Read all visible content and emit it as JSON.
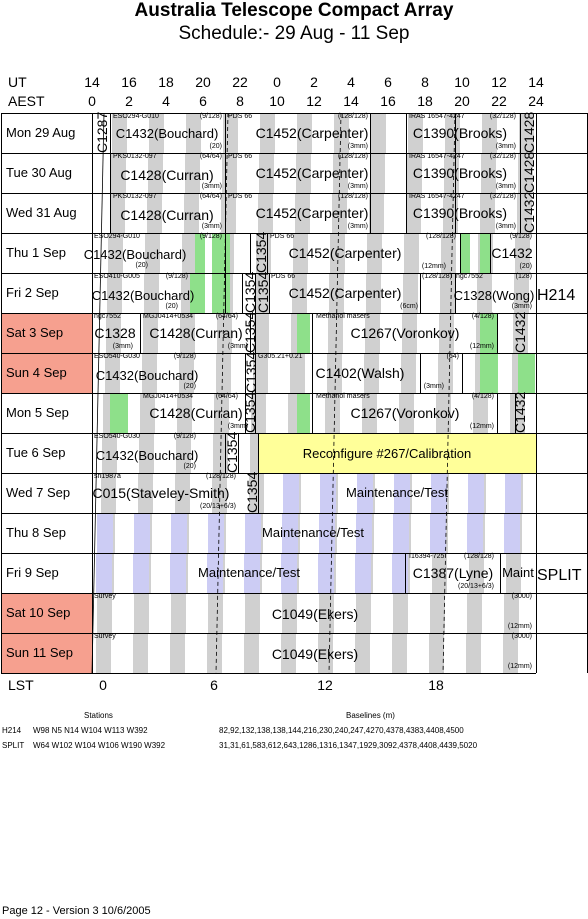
{
  "header": {
    "title": "Australia Telescope Compact Array",
    "subtitle": "Schedule:- 29 Aug - 11 Sep",
    "ut_label": "UT",
    "aest_label": "AEST",
    "ut_ticks": [
      "14",
      "16",
      "18",
      "20",
      "22",
      "0",
      "2",
      "4",
      "6",
      "8",
      "10",
      "12",
      "14"
    ],
    "aest_ticks": [
      "0",
      "2",
      "4",
      "6",
      "8",
      "10",
      "12",
      "14",
      "16",
      "18",
      "20",
      "22",
      "24"
    ]
  },
  "days": [
    {
      "label": "Mon  29 Aug",
      "highlight": false
    },
    {
      "label": "Tue   30 Aug",
      "highlight": false
    },
    {
      "label": "Wed  31 Aug",
      "highlight": false
    },
    {
      "label": "Thu    1  Sep",
      "highlight": false
    },
    {
      "label": "Fri    2  Sep",
      "highlight": false
    },
    {
      "label": "Sat    3  Sep",
      "highlight": true
    },
    {
      "label": "Sun   4  Sep",
      "highlight": true
    },
    {
      "label": "Mon   5  Sep",
      "highlight": false
    },
    {
      "label": "Tue    6  Sep",
      "highlight": false
    },
    {
      "label": "Wed   7  Sep",
      "highlight": false
    },
    {
      "label": "Thu    8  Sep",
      "highlight": false
    },
    {
      "label": "Fri    9  Sep",
      "highlight": false
    },
    {
      "label": "Sat   10 Sep",
      "highlight": true
    },
    {
      "label": "Sun   11 Sep",
      "highlight": true
    }
  ],
  "configs": {
    "h214": "H214",
    "split": "SPLIT"
  },
  "blocks": {
    "r0": {
      "v1": "C1287",
      "src1": "ESO294-G010",
      "n1": "(9/128)",
      "p1": "C1432(Bouchard)",
      "w1": "(20)",
      "src2": "PDS 66",
      "p2": "C1452(Carpenter)",
      "n2": "(128/128)",
      "w2": "(3mm)",
      "src3": "IRAS 16547-4247",
      "n3": "(32/128)",
      "p3": "C1390(Brooks)",
      "w3": "(3mm)",
      "v2": "C1428"
    },
    "r1": {
      "src1": "PKS0132-097",
      "n1": "(64/64)",
      "p1": "C1428(Curran)",
      "w1": "(3mm)",
      "src2": "PDS 66",
      "p2": "C1452(Carpenter)",
      "n2": "(128/128)",
      "w2": "(3mm)",
      "src3": "IRAS 16547-4247",
      "n3": "(32/128)",
      "p3": "C1390(Brooks)",
      "w3": "(3mm)",
      "v2": "C1428"
    },
    "r2": {
      "src1": "PKS0132-097",
      "n1": "(64/64)",
      "p1": "C1428(Curran)",
      "w1": "(3mm)",
      "src2": "PDS 66",
      "p2": "C1452(Carpenter)",
      "n2": "(128/128)",
      "w2": "(3mm)",
      "src3": "IRAS 16547-4247",
      "n3": "(32/128)",
      "p3": "C1390(Brooks)",
      "w3": "(3mm)",
      "v2": "C1432"
    },
    "r3": {
      "src1": "ESO294-G010",
      "n1": "(9/128)",
      "p1": "C1432(Bouchard)",
      "w1": "(20)",
      "v1": "C1354",
      "src2": "PDS 66",
      "n2": "(128/128)",
      "p2": "C1452(Carpenter)",
      "w2": "(12mm)",
      "n3": "(9/128)",
      "p3": "C1432",
      "w3": "(20)"
    },
    "r4": {
      "src1": "ESO410-G005",
      "n1": "(9/128)",
      "p1": "C1432(Bouchard)",
      "w1": "(20)",
      "v1": "C1354",
      "v1b": "C1354",
      "src2": "PDS 66",
      "n2": "(128/128)",
      "p2": "C1452(Carpenter)",
      "w2": "(6cm)",
      "src3": "ngc7552",
      "n3": "(128)",
      "p3": "C1328(Wong)",
      "w3": "(3mm)"
    },
    "r5": {
      "src0": "ngc7552",
      "p0": "C1328",
      "w0": "(3mm)",
      "src1": "MGJ0414+0534",
      "n1": "(64/64)",
      "p1": "C1428(Curran)",
      "w1": "(3mm)",
      "v1": "C1354",
      "src2": "Methanol masers",
      "n2": "(4/128)",
      "p2": "C1267(Voronkov)",
      "w2": "(12mm)",
      "v2": "C1432"
    },
    "r6": {
      "src1": "ESO540-G030",
      "n1": "(9/128)",
      "p1": "C1432(Bouchard)",
      "w1": "(20)",
      "v1": "C1354",
      "src2": "G305.21+0.21",
      "n2": "(64)",
      "p2": "C1402(Walsh)",
      "w2": "(3mm)"
    },
    "r7": {
      "src1": "MGJ0414+0534",
      "n1": "(64/64)",
      "p1": "C1428(Curran)",
      "w1": "(3mm)",
      "v1": "C1354",
      "src2": "Methanol masers",
      "n2": "(4/128)",
      "p2": "C1267(Voronkov)",
      "w2": "(12mm)",
      "v2": "C1432"
    },
    "r8": {
      "src1": "ESO540-G030",
      "n1": "(9/128)",
      "p1": "C1432(Bouchard)",
      "w1": "(20)",
      "v1": "C1354",
      "p2": "Reconfigure #267/Calibration"
    },
    "r9": {
      "src1": "sn1987a",
      "n1": "(128/128)",
      "p1": "C015(Staveley-Smith)",
      "w1": "(20/13+6/3)",
      "v1": "C1354",
      "p2": "Maintenance/Test"
    },
    "r10": {
      "p1": "Maintenance/Test"
    },
    "r11": {
      "p1": "Maintenance/Test",
      "src2": "I16394-725",
      "n2": "(128/128)",
      "p2": "C1387(Lyne)",
      "w2": "(20/13+6/3)",
      "p3": "Maint"
    },
    "r12": {
      "src1": "Survey",
      "n1": "(3000)",
      "p1": "C1049(Ekers)",
      "w1": "(12mm)"
    },
    "r13": {
      "src1": "Survey",
      "n1": "(3000)",
      "p1": "C1049(Ekers)",
      "w1": "(12mm)"
    }
  },
  "lst": {
    "label": "LST",
    "ticks": [
      "0",
      "6",
      "12",
      "18"
    ]
  },
  "stations": {
    "stations_heading": "Stations",
    "baselines_heading": "Baselines (m)",
    "rows": [
      {
        "name": "H214",
        "stations": "W98 N5 N14 W104 W113 W392",
        "baselines": "82,92,132,138,138,144,216,230,240,247,4270,4378,4383,4408,4500"
      },
      {
        "name": "SPLIT",
        "stations": "W64 W102 W104 W106 W190 W392",
        "baselines": "31,31,61,583,612,643,1286,1316,1347,1929,3092,4378,4408,4439,5020"
      }
    ]
  },
  "footer": "Page 12 - Version 3  10/6/2005",
  "colors": {
    "weekend": "#f6a08f",
    "lst_stripe": "#d0d0d0",
    "green": "#8ee08a",
    "blue": "#ccccf4",
    "yellow": "#ffff99"
  }
}
